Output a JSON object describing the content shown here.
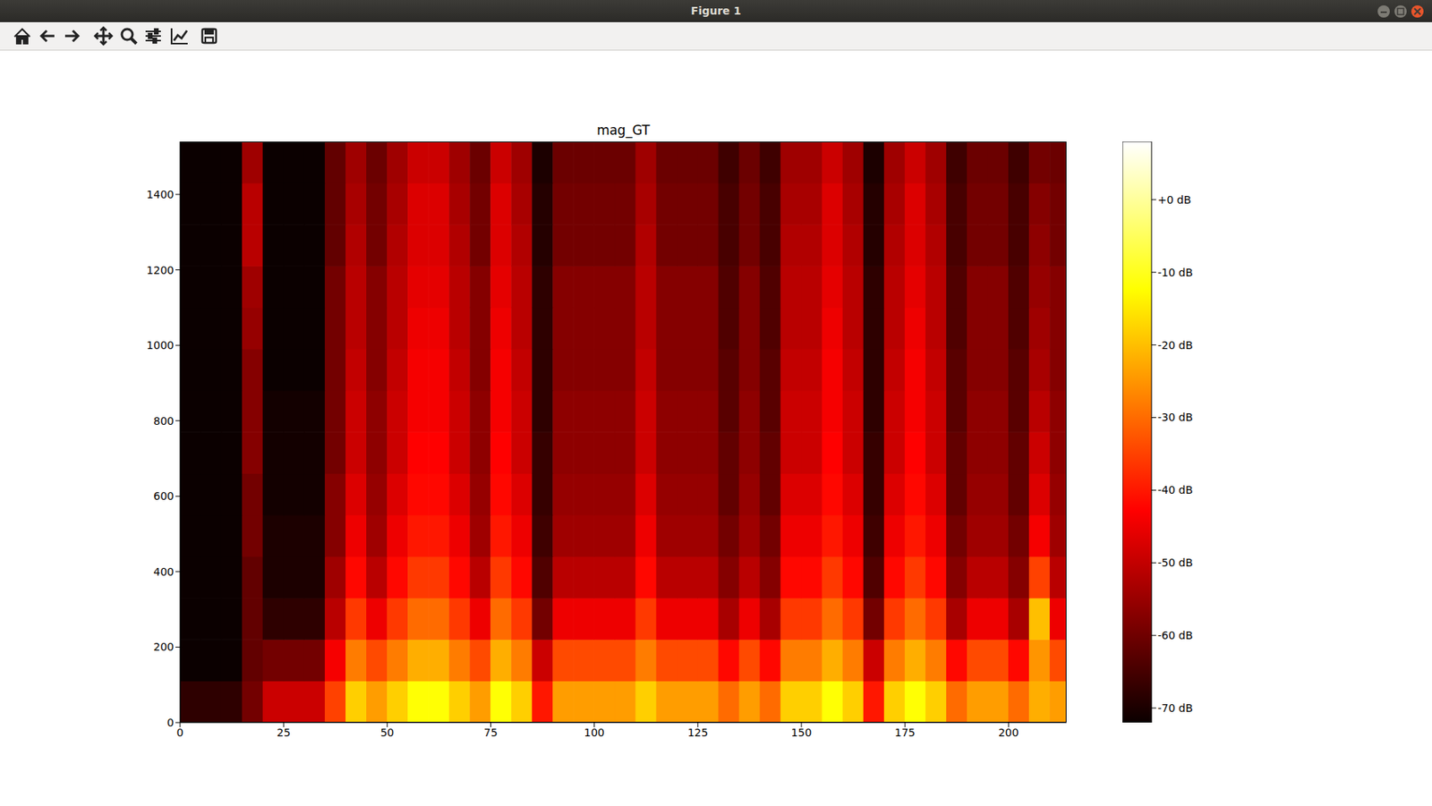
{
  "window_title": "Figure 1",
  "chart_data": {
    "type": "heatmap",
    "title": "mag_GT",
    "x": [
      0,
      5,
      10,
      15,
      20,
      25,
      30,
      35,
      40,
      45,
      50,
      55,
      60,
      65,
      70,
      75,
      80,
      85,
      90,
      95,
      100,
      105,
      110,
      115,
      120,
      125,
      130,
      135,
      140,
      145,
      150,
      155,
      160,
      165,
      170,
      175,
      180,
      185,
      190,
      195,
      200,
      205,
      210
    ],
    "y": [
      0,
      110,
      220,
      330,
      440,
      550,
      660,
      770,
      880,
      990,
      1100,
      1210,
      1320,
      1430
    ],
    "values": [
      [
        -68,
        -68,
        -68,
        -60,
        -50,
        -50,
        -50,
        -35,
        -18,
        -24,
        -18,
        -12,
        -12,
        -18,
        -24,
        -12,
        -18,
        -40,
        -24,
        -24,
        -24,
        -24,
        -18,
        -24,
        -24,
        -24,
        -30,
        -24,
        -30,
        -18,
        -18,
        -12,
        -18,
        -40,
        -18,
        -12,
        -18,
        -30,
        -24,
        -24,
        -30,
        -22,
        -24
      ],
      [
        -72,
        -72,
        -72,
        -62,
        -60,
        -60,
        -60,
        -45,
        -28,
        -34,
        -28,
        -22,
        -22,
        -28,
        -34,
        -22,
        -28,
        -50,
        -34,
        -34,
        -34,
        -34,
        -28,
        -34,
        -34,
        -34,
        -42,
        -34,
        -42,
        -28,
        -28,
        -22,
        -28,
        -50,
        -28,
        -22,
        -28,
        -42,
        -34,
        -34,
        -42,
        -25,
        -34
      ],
      [
        -72,
        -72,
        -72,
        -62,
        -68,
        -68,
        -68,
        -52,
        -36,
        -46,
        -36,
        -30,
        -30,
        -36,
        -46,
        -30,
        -36,
        -60,
        -46,
        -46,
        -46,
        -46,
        -36,
        -46,
        -46,
        -46,
        -54,
        -46,
        -54,
        -36,
        -36,
        -30,
        -36,
        -60,
        -36,
        -30,
        -36,
        -54,
        -46,
        -46,
        -54,
        -20,
        -46
      ],
      [
        -72,
        -72,
        -72,
        -62,
        -70,
        -70,
        -70,
        -55,
        -42,
        -52,
        -42,
        -36,
        -36,
        -42,
        -52,
        -36,
        -42,
        -64,
        -52,
        -52,
        -52,
        -52,
        -42,
        -52,
        -52,
        -52,
        -58,
        -52,
        -58,
        -42,
        -42,
        -36,
        -42,
        -64,
        -42,
        -36,
        -42,
        -58,
        -52,
        -52,
        -58,
        -35,
        -52
      ],
      [
        -72,
        -72,
        -72,
        -60,
        -70,
        -70,
        -70,
        -58,
        -46,
        -55,
        -46,
        -40,
        -40,
        -46,
        -55,
        -40,
        -46,
        -66,
        -55,
        -55,
        -55,
        -55,
        -46,
        -55,
        -55,
        -55,
        -60,
        -55,
        -60,
        -46,
        -46,
        -40,
        -46,
        -66,
        -46,
        -40,
        -46,
        -60,
        -55,
        -55,
        -60,
        -45,
        -55
      ],
      [
        -72,
        -72,
        -72,
        -60,
        -71,
        -71,
        -71,
        -58,
        -48,
        -56,
        -48,
        -42,
        -42,
        -48,
        -56,
        -42,
        -48,
        -67,
        -56,
        -56,
        -56,
        -56,
        -48,
        -56,
        -56,
        -56,
        -62,
        -56,
        -62,
        -48,
        -48,
        -42,
        -48,
        -67,
        -48,
        -42,
        -48,
        -62,
        -56,
        -56,
        -62,
        -48,
        -56
      ],
      [
        -72,
        -72,
        -72,
        -58,
        -71,
        -71,
        -71,
        -60,
        -50,
        -57,
        -50,
        -44,
        -44,
        -50,
        -57,
        -44,
        -50,
        -67,
        -57,
        -57,
        -57,
        -57,
        -50,
        -57,
        -57,
        -57,
        -62,
        -57,
        -62,
        -50,
        -50,
        -44,
        -50,
        -67,
        -50,
        -44,
        -50,
        -62,
        -57,
        -57,
        -62,
        -50,
        -57
      ],
      [
        -72,
        -72,
        -72,
        -58,
        -71,
        -71,
        -71,
        -60,
        -50,
        -57,
        -50,
        -45,
        -45,
        -50,
        -57,
        -45,
        -50,
        -68,
        -57,
        -57,
        -57,
        -57,
        -50,
        -57,
        -57,
        -57,
        -63,
        -57,
        -63,
        -50,
        -50,
        -45,
        -50,
        -68,
        -50,
        -45,
        -50,
        -63,
        -57,
        -57,
        -63,
        -52,
        -57
      ],
      [
        -72,
        -72,
        -72,
        -58,
        -72,
        -72,
        -72,
        -60,
        -51,
        -58,
        -51,
        -45,
        -45,
        -51,
        -58,
        -45,
        -51,
        -68,
        -58,
        -58,
        -58,
        -58,
        -51,
        -58,
        -58,
        -58,
        -63,
        -58,
        -63,
        -51,
        -51,
        -45,
        -51,
        -68,
        -51,
        -45,
        -51,
        -63,
        -58,
        -58,
        -63,
        -54,
        -58
      ],
      [
        -72,
        -72,
        -72,
        -56,
        -72,
        -72,
        -72,
        -60,
        -52,
        -58,
        -52,
        -46,
        -46,
        -52,
        -58,
        -46,
        -52,
        -68,
        -58,
        -58,
        -58,
        -58,
        -52,
        -58,
        -58,
        -58,
        -64,
        -58,
        -64,
        -52,
        -52,
        -46,
        -52,
        -68,
        -52,
        -46,
        -52,
        -64,
        -58,
        -58,
        -64,
        -55,
        -58
      ],
      [
        -72,
        -72,
        -72,
        -55,
        -72,
        -72,
        -72,
        -60,
        -52,
        -58,
        -52,
        -47,
        -47,
        -52,
        -58,
        -47,
        -52,
        -68,
        -58,
        -58,
        -58,
        -58,
        -52,
        -58,
        -58,
        -58,
        -64,
        -58,
        -64,
        -52,
        -52,
        -47,
        -52,
        -68,
        -52,
        -47,
        -52,
        -64,
        -58,
        -58,
        -64,
        -56,
        -58
      ],
      [
        -72,
        -72,
        -72,
        -52,
        -72,
        -72,
        -72,
        -62,
        -53,
        -60,
        -53,
        -48,
        -48,
        -53,
        -60,
        -48,
        -53,
        -69,
        -60,
        -60,
        -60,
        -60,
        -53,
        -60,
        -60,
        -60,
        -65,
        -60,
        -65,
        -53,
        -53,
        -48,
        -53,
        -69,
        -53,
        -48,
        -53,
        -65,
        -60,
        -60,
        -65,
        -57,
        -60
      ],
      [
        -72,
        -72,
        -72,
        -52,
        -72,
        -72,
        -72,
        -62,
        -54,
        -60,
        -54,
        -48,
        -48,
        -54,
        -60,
        -48,
        -54,
        -69,
        -60,
        -60,
        -60,
        -60,
        -54,
        -60,
        -60,
        -60,
        -65,
        -60,
        -65,
        -54,
        -54,
        -48,
        -54,
        -69,
        -54,
        -48,
        -54,
        -65,
        -60,
        -60,
        -65,
        -58,
        -60
      ],
      [
        -72,
        -72,
        -72,
        -55,
        -72,
        -72,
        -72,
        -62,
        -55,
        -61,
        -55,
        -50,
        -50,
        -55,
        -61,
        -50,
        -55,
        -70,
        -61,
        -61,
        -61,
        -61,
        -55,
        -61,
        -61,
        -61,
        -66,
        -61,
        -66,
        -55,
        -55,
        -50,
        -55,
        -70,
        -55,
        -50,
        -55,
        -66,
        -61,
        -61,
        -66,
        -60,
        -61
      ]
    ],
    "xlim": [
      0,
      214
    ],
    "xticks": [
      0,
      25,
      50,
      75,
      100,
      125,
      150,
      175,
      200
    ],
    "ylim": [
      0,
      1540
    ],
    "yticks": [
      0,
      200,
      400,
      600,
      800,
      1000,
      1200,
      1400
    ],
    "colorbar": {
      "range": [
        -72,
        8
      ],
      "ticks": [
        {
          "value": 0,
          "label": "+0 dB"
        },
        {
          "value": -10,
          "label": "-10 dB"
        },
        {
          "value": -20,
          "label": "-20 dB"
        },
        {
          "value": -30,
          "label": "-30 dB"
        },
        {
          "value": -40,
          "label": "-40 dB"
        },
        {
          "value": -50,
          "label": "-50 dB"
        },
        {
          "value": -60,
          "label": "-60 dB"
        },
        {
          "value": -70,
          "label": "-70 dB"
        }
      ]
    }
  }
}
